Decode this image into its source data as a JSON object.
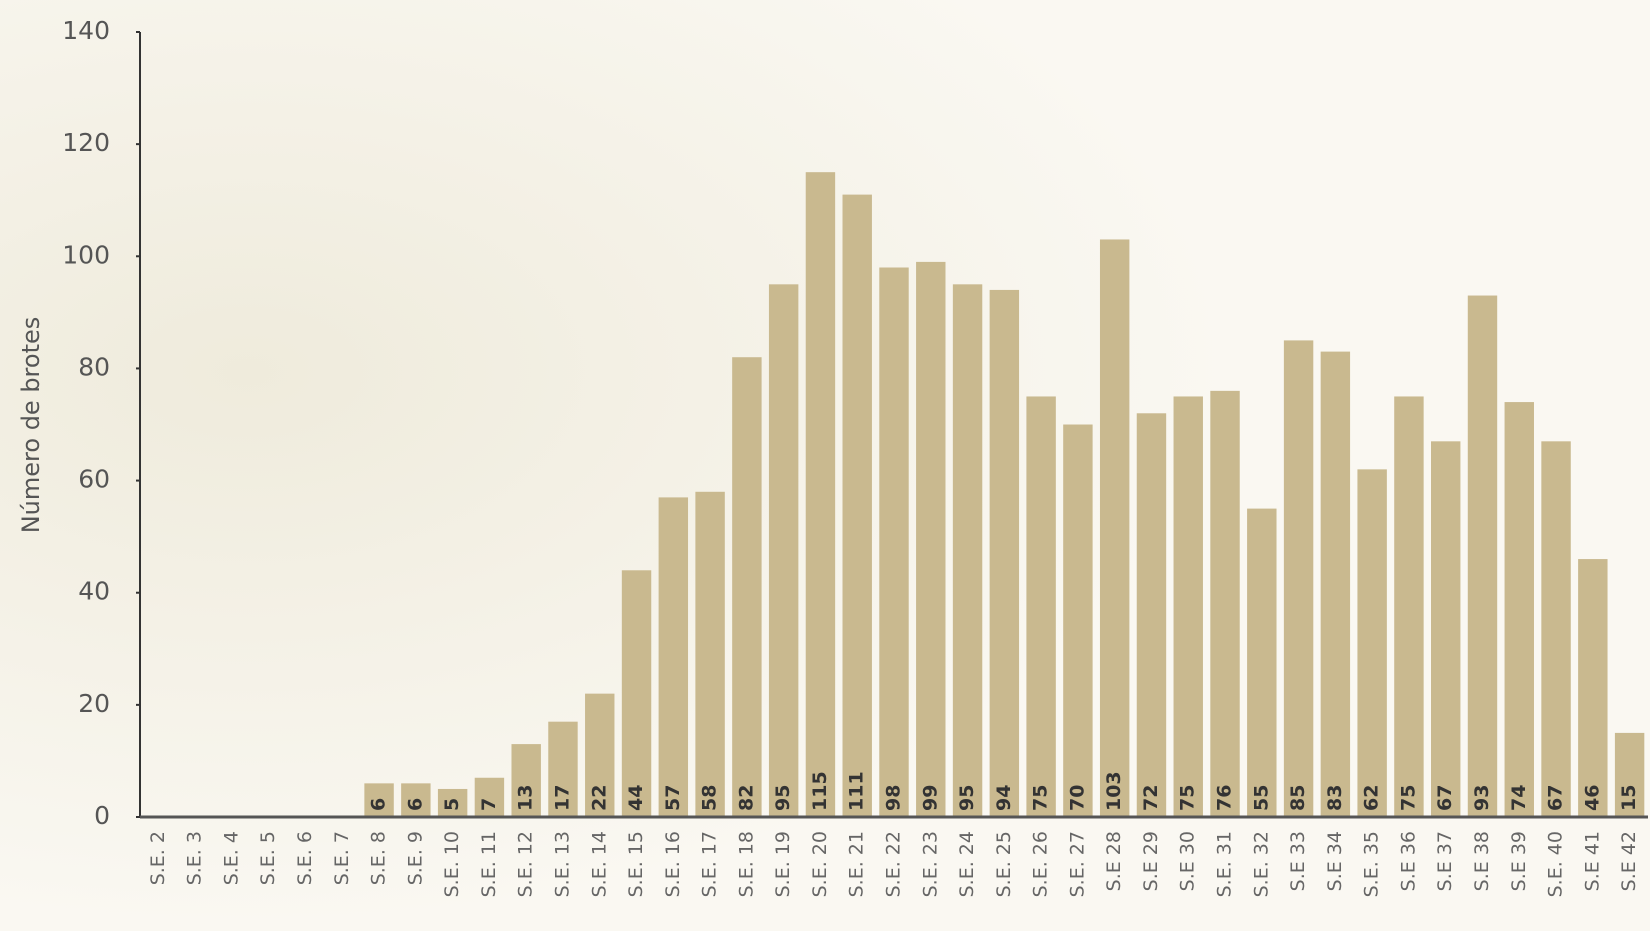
{
  "chart_data": {
    "type": "bar",
    "y_label": "Número de brotes",
    "categories": [
      "S.E. 2",
      "S.E. 3",
      "S.E. 4",
      "S.E. 5",
      "S.E. 6",
      "S.E. 7",
      "S.E. 8",
      "S.E. 9",
      "S.E. 10",
      "S.E. 11",
      "S.E. 12",
      "S.E. 13",
      "S.E. 14",
      "S.E. 15",
      "S.E. 16",
      "S.E. 17",
      "S.E. 18",
      "S.E. 19",
      "S.E. 20",
      "S.E. 21",
      "S.E. 22",
      "S.E. 23",
      "S.E. 24",
      "S.E. 25",
      "S.E. 26",
      "S.E. 27",
      "S.E 28",
      "S.E 29",
      "S.E 30",
      "S.E. 31",
      "S.E. 32",
      "S.E 33",
      "S.E 34",
      "S.E. 35",
      "S.E 36",
      "S.E 37",
      "S.E 38",
      "S.E 39",
      "S.E. 40",
      "S.E 41",
      "S.E 42"
    ],
    "values": [
      null,
      null,
      null,
      null,
      null,
      null,
      6,
      6,
      5,
      7,
      13,
      17,
      22,
      44,
      57,
      58,
      82,
      95,
      115,
      111,
      98,
      99,
      95,
      94,
      75,
      70,
      103,
      72,
      75,
      76,
      55,
      85,
      83,
      62,
      75,
      67,
      93,
      74,
      67,
      46,
      15
    ],
    "color": "#c9b98f",
    "ylim": [
      0,
      140
    ],
    "yticks": [
      0,
      20,
      40,
      60,
      80,
      100,
      120,
      140
    ]
  }
}
